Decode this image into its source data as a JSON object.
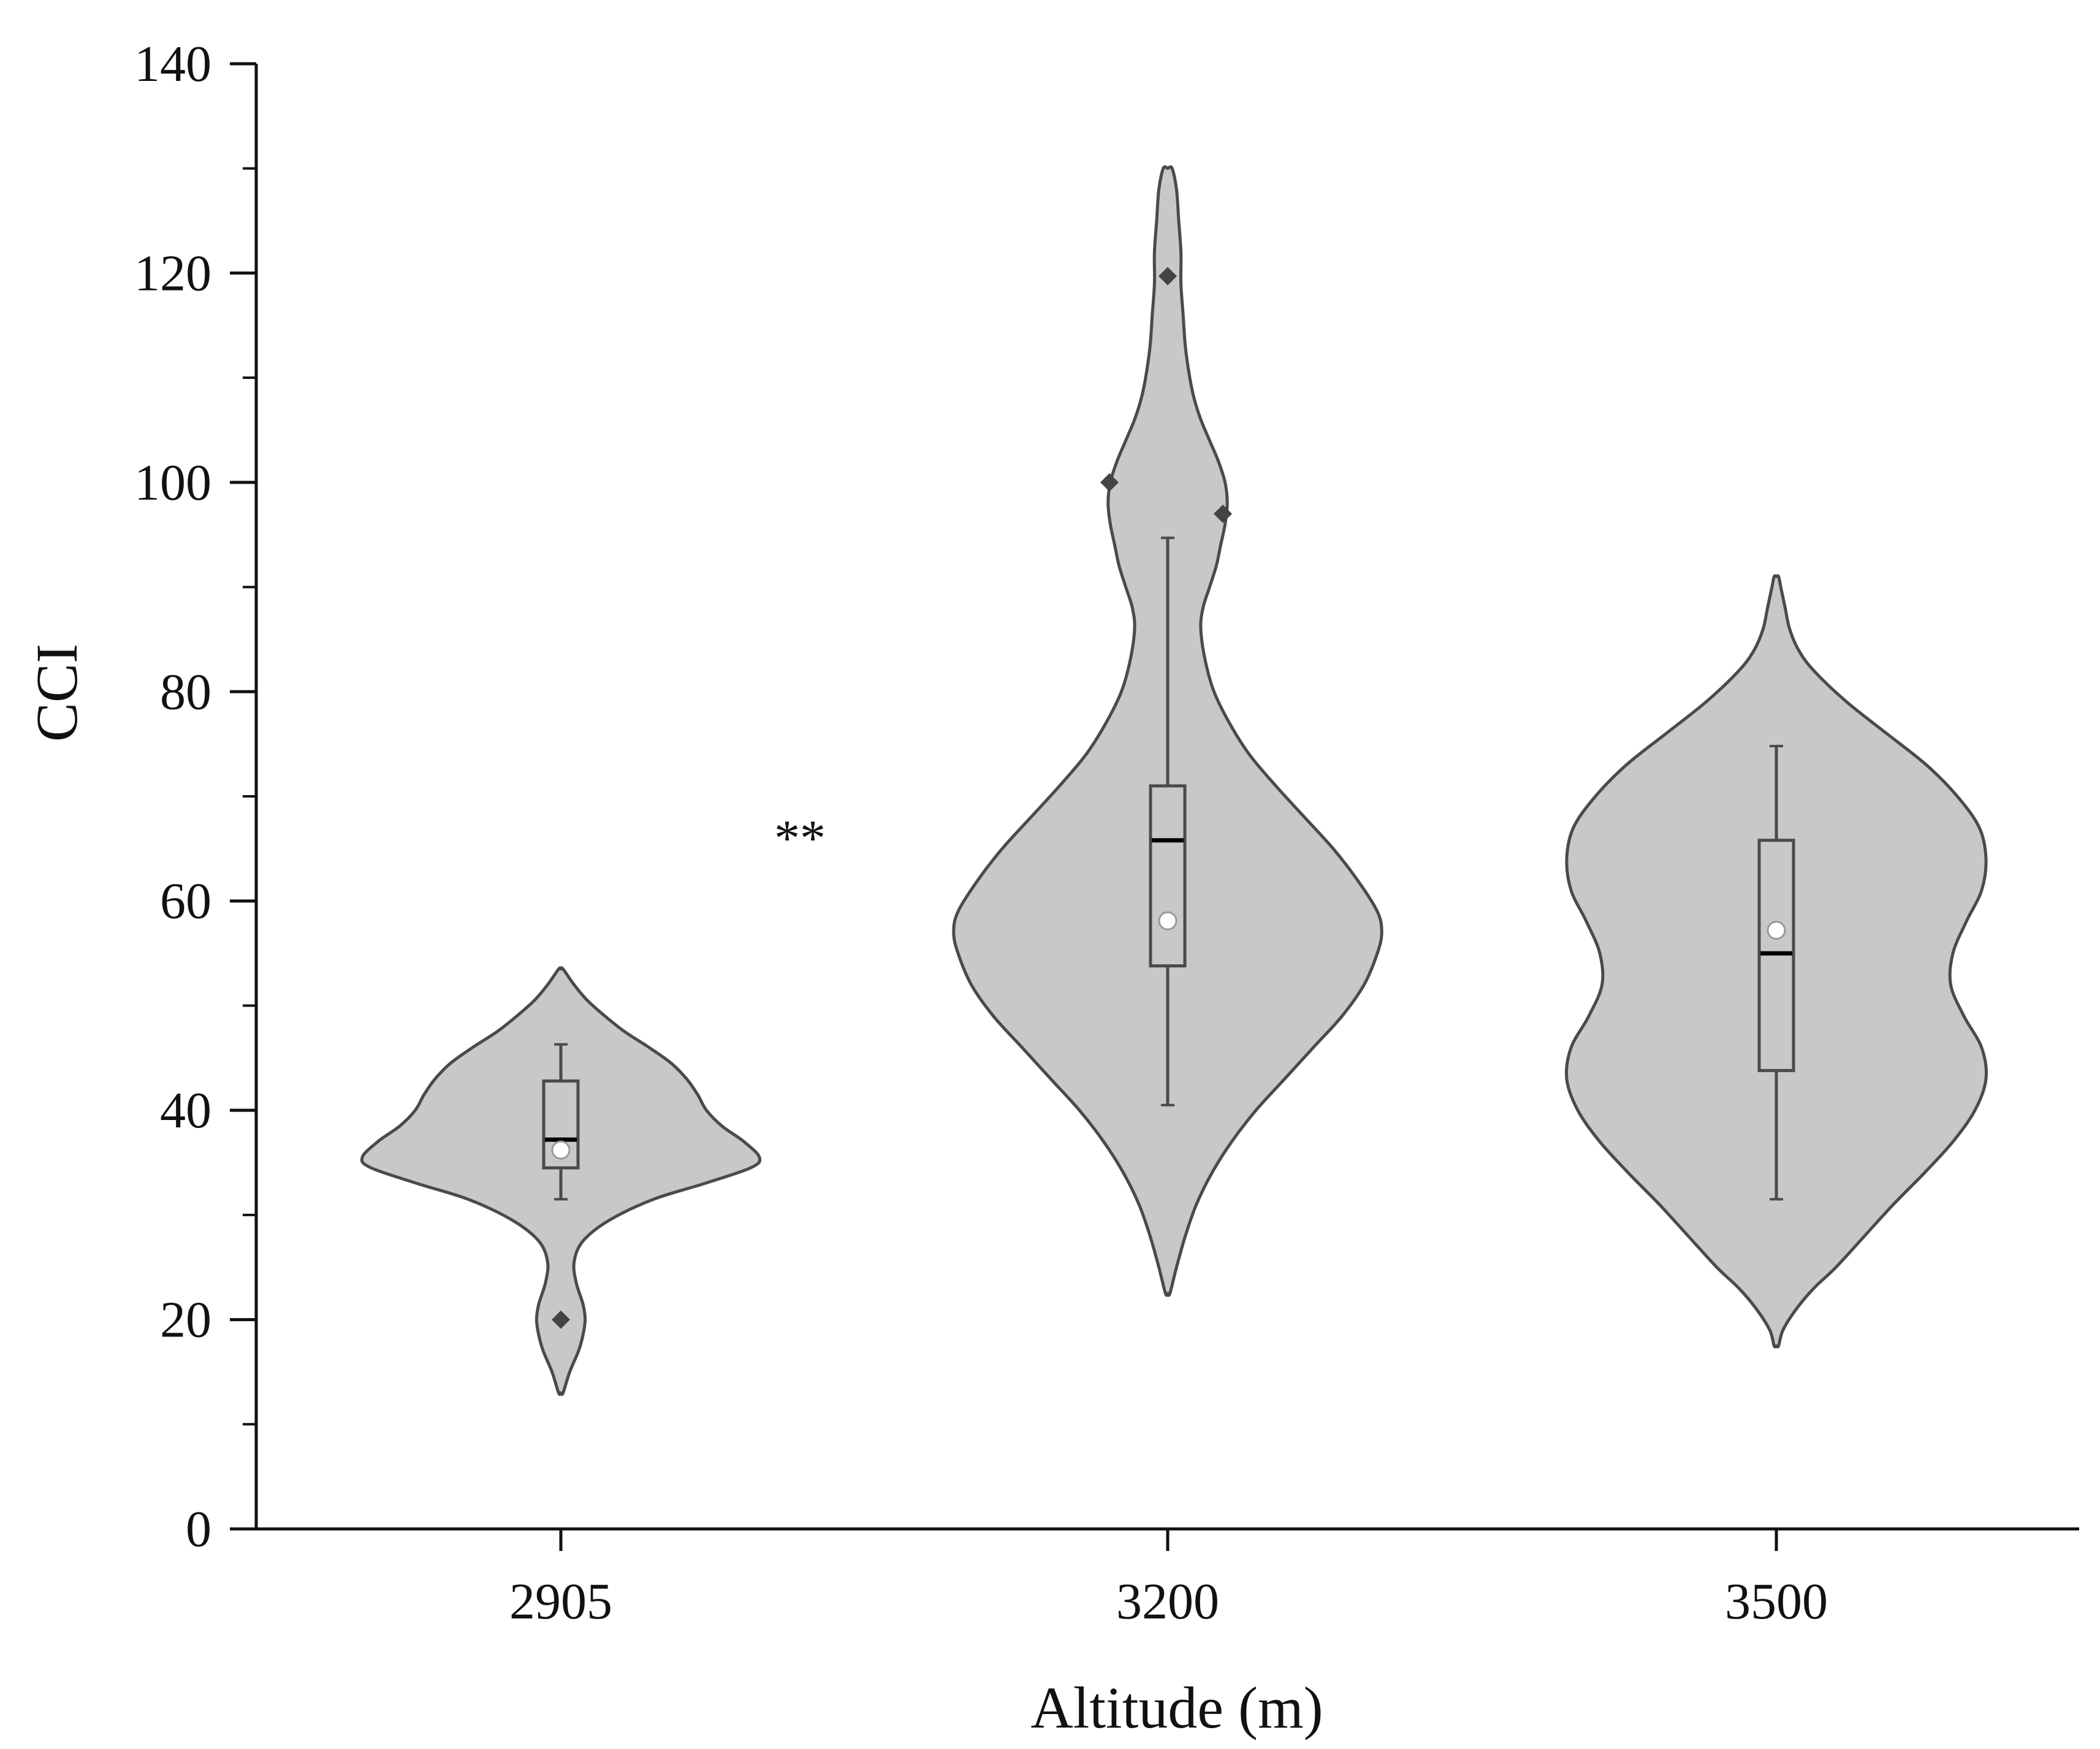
{
  "chart_data": {
    "type": "violin",
    "xlabel": "Altitude (m)",
    "ylabel": "CCI",
    "ylim": [
      0,
      140
    ],
    "yticks": [
      "0",
      "20",
      "40",
      "60",
      "80",
      "100",
      "120",
      "140"
    ],
    "categories": [
      "2905",
      "3200",
      "3500"
    ],
    "significance_annotation": "**",
    "colors": {
      "fill": "#c8c8c8",
      "stroke": "#4a4a4a",
      "axis": "#111111"
    },
    "groups": [
      {
        "category": "2905",
        "box": {
          "q1": 34.5,
          "median": 37.2,
          "q3": 42.8,
          "whisker_low": 31.5,
          "whisker_high": 46.3,
          "mean": 36.2
        },
        "outliers": [
          20.0
        ],
        "density_range": [
          13.0,
          53.5
        ],
        "density_profile": [
          [
            13,
            0.01
          ],
          [
            15,
            0.04
          ],
          [
            17,
            0.08
          ],
          [
            18.5,
            0.1
          ],
          [
            20,
            0.11
          ],
          [
            21.5,
            0.1
          ],
          [
            23.5,
            0.07
          ],
          [
            25.5,
            0.06
          ],
          [
            27.5,
            0.1
          ],
          [
            29.5,
            0.22
          ],
          [
            31.5,
            0.42
          ],
          [
            33,
            0.65
          ],
          [
            34.5,
            0.86
          ],
          [
            35.5,
            0.9
          ],
          [
            37,
            0.83
          ],
          [
            38.5,
            0.73
          ],
          [
            40,
            0.66
          ],
          [
            41.5,
            0.62
          ],
          [
            43,
            0.57
          ],
          [
            44.5,
            0.5
          ],
          [
            46,
            0.4
          ],
          [
            47.5,
            0.29
          ],
          [
            49,
            0.2
          ],
          [
            50.5,
            0.12
          ],
          [
            52,
            0.06
          ],
          [
            53.5,
            0.01
          ]
        ]
      },
      {
        "category": "3200",
        "box": {
          "q1": 53.8,
          "median": 65.8,
          "q3": 71.0,
          "whisker_low": 40.5,
          "whisker_high": 94.7,
          "mean": 58.1
        },
        "outliers": [
          119.7,
          100.0,
          97.0
        ],
        "density_range": [
          22.5,
          130.0
        ],
        "density_profile": [
          [
            22.5,
            0.01
          ],
          [
            25,
            0.04
          ],
          [
            28,
            0.08
          ],
          [
            31,
            0.13
          ],
          [
            34,
            0.2
          ],
          [
            37,
            0.29
          ],
          [
            40,
            0.4
          ],
          [
            43,
            0.53
          ],
          [
            46,
            0.66
          ],
          [
            49,
            0.79
          ],
          [
            52,
            0.89
          ],
          [
            55,
            0.95
          ],
          [
            57,
            0.97
          ],
          [
            59,
            0.95
          ],
          [
            62,
            0.86
          ],
          [
            65,
            0.75
          ],
          [
            68,
            0.62
          ],
          [
            71,
            0.49
          ],
          [
            74,
            0.37
          ],
          [
            77,
            0.28
          ],
          [
            80,
            0.21
          ],
          [
            83,
            0.17
          ],
          [
            86,
            0.15
          ],
          [
            88,
            0.16
          ],
          [
            90,
            0.19
          ],
          [
            92,
            0.22
          ],
          [
            94,
            0.24
          ],
          [
            96,
            0.26
          ],
          [
            98,
            0.27
          ],
          [
            100,
            0.26
          ],
          [
            102,
            0.23
          ],
          [
            104,
            0.19
          ],
          [
            106,
            0.15
          ],
          [
            108,
            0.12
          ],
          [
            110,
            0.1
          ],
          [
            113,
            0.08
          ],
          [
            116,
            0.07
          ],
          [
            119,
            0.06
          ],
          [
            122,
            0.06
          ],
          [
            125,
            0.05
          ],
          [
            128,
            0.04
          ],
          [
            130,
            0.02
          ]
        ]
      },
      {
        "category": "3500",
        "box": {
          "q1": 43.8,
          "median": 55.0,
          "q3": 65.8,
          "whisker_low": 31.5,
          "whisker_high": 74.8,
          "mean": 57.2
        },
        "outliers": [],
        "density_range": [
          17.5,
          91.0
        ],
        "density_profile": [
          [
            17.5,
            0.01
          ],
          [
            19,
            0.03
          ],
          [
            21,
            0.09
          ],
          [
            23,
            0.17
          ],
          [
            25,
            0.27
          ],
          [
            28,
            0.4
          ],
          [
            31,
            0.53
          ],
          [
            34,
            0.67
          ],
          [
            37,
            0.8
          ],
          [
            40,
            0.9
          ],
          [
            43,
            0.95
          ],
          [
            46,
            0.93
          ],
          [
            49,
            0.85
          ],
          [
            52,
            0.79
          ],
          [
            55,
            0.8
          ],
          [
            58,
            0.86
          ],
          [
            61,
            0.93
          ],
          [
            64,
            0.95
          ],
          [
            67,
            0.92
          ],
          [
            70,
            0.82
          ],
          [
            73,
            0.68
          ],
          [
            76,
            0.5
          ],
          [
            79,
            0.32
          ],
          [
            82,
            0.17
          ],
          [
            84,
            0.1
          ],
          [
            86,
            0.06
          ],
          [
            88,
            0.04
          ],
          [
            90,
            0.02
          ],
          [
            91,
            0.01
          ]
        ]
      }
    ]
  }
}
